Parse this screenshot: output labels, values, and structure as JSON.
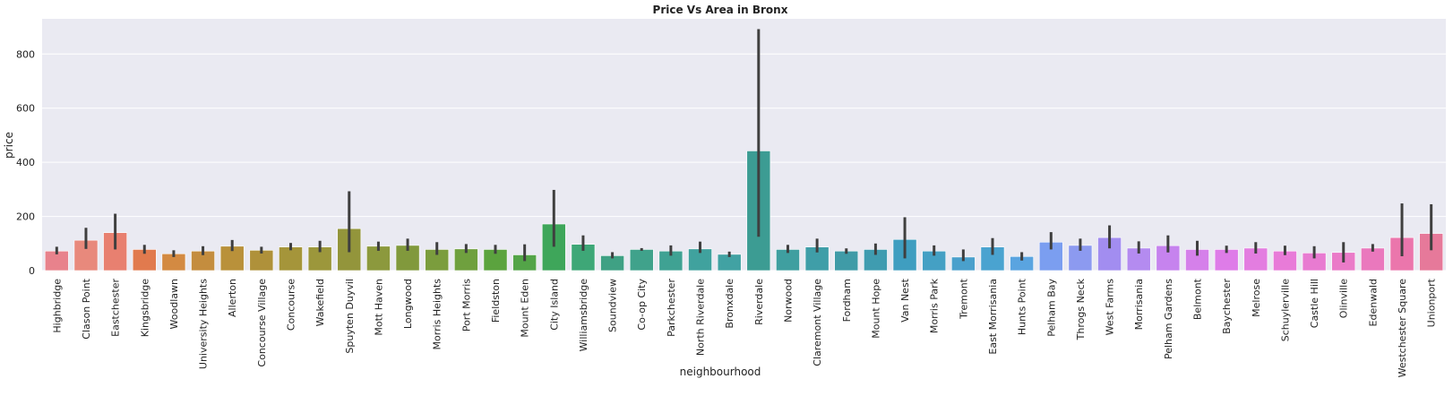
{
  "chart_data": {
    "type": "bar",
    "title": "Price Vs Area in Bronx",
    "xlabel": "neighbourhood",
    "ylabel": "price",
    "ylim": [
      0,
      930
    ],
    "yticks": [
      0,
      200,
      400,
      600,
      800
    ],
    "grid": true,
    "background_color": "#eaeaf2",
    "categories": [
      "Highbridge",
      "Clason Point",
      "Eastchester",
      "Kingsbridge",
      "Woodlawn",
      "University Heights",
      "Allerton",
      "Concourse Village",
      "Concourse",
      "Wakefield",
      "Spuyten Duyvil",
      "Mott Haven",
      "Longwood",
      "Morris Heights",
      "Port Morris",
      "Fieldston",
      "Mount Eden",
      "City Island",
      "Williamsbridge",
      "Soundview",
      "Co-op City",
      "Parkchester",
      "North Riverdale",
      "Bronxdale",
      "Riverdale",
      "Norwood",
      "Claremont Village",
      "Fordham",
      "Mount Hope",
      "Van Nest",
      "Morris Park",
      "Tremont",
      "East Morrisania",
      "Hunts Point",
      "Pelham Bay",
      "Throgs Neck",
      "West Farms",
      "Morrisania",
      "Pelham Gardens",
      "Belmont",
      "Baychester",
      "Melrose",
      "Schuylerville",
      "Castle Hill",
      "Olinville",
      "Edenwald",
      "Westchester Square",
      "Unionport"
    ],
    "values": [
      72,
      112,
      140,
      78,
      62,
      72,
      90,
      75,
      87,
      87,
      155,
      90,
      93,
      78,
      80,
      78,
      58,
      172,
      97,
      55,
      78,
      72,
      80,
      60,
      442,
      78,
      87,
      72,
      78,
      115,
      72,
      50,
      87,
      52,
      105,
      93,
      122,
      83,
      92,
      78,
      78,
      83,
      72,
      65,
      67,
      83,
      122,
      137
    ],
    "error_low": [
      60,
      80,
      78,
      62,
      50,
      57,
      72,
      63,
      75,
      68,
      68,
      73,
      73,
      58,
      65,
      62,
      35,
      88,
      73,
      45,
      73,
      55,
      65,
      50,
      125,
      65,
      67,
      62,
      58,
      45,
      55,
      35,
      58,
      37,
      78,
      73,
      82,
      63,
      67,
      55,
      65,
      63,
      57,
      45,
      30,
      70,
      53,
      75
    ],
    "error_high": [
      88,
      158,
      210,
      95,
      75,
      90,
      113,
      88,
      102,
      110,
      293,
      107,
      118,
      105,
      98,
      95,
      97,
      298,
      130,
      68,
      83,
      93,
      107,
      70,
      892,
      95,
      118,
      82,
      100,
      197,
      93,
      78,
      120,
      68,
      142,
      118,
      167,
      108,
      130,
      110,
      92,
      105,
      92,
      90,
      105,
      98,
      248,
      245
    ],
    "bar_colors": [
      "#e8828c",
      "#e8897c",
      "#e88070",
      "#e17a4e",
      "#d38a42",
      "#c48d3e",
      "#b9913a",
      "#af913a",
      "#a5953a",
      "#9c973b",
      "#93953b",
      "#8c993d",
      "#81993c",
      "#7b9d3d",
      "#6fa03e",
      "#5ba33e",
      "#53a448",
      "#3ea65a",
      "#3ea777",
      "#3fa184",
      "#40a28b",
      "#3fa293",
      "#40a29e",
      "#41a2a3",
      "#3c9c93",
      "#3f9fa0",
      "#3f9ea8",
      "#3f9ba7",
      "#3f9cb0",
      "#3f9ec0",
      "#44a0c4",
      "#4aa0cc",
      "#4aa3d0",
      "#5aa4e0",
      "#7b9ef0",
      "#8c9af0",
      "#a28df0",
      "#b48bf0",
      "#c683ee",
      "#d580ea",
      "#de7ce8",
      "#e37de0",
      "#e87bd8",
      "#e87bd1",
      "#ea7bc8",
      "#ea78bd",
      "#eb76ac",
      "#e6799a"
    ]
  }
}
